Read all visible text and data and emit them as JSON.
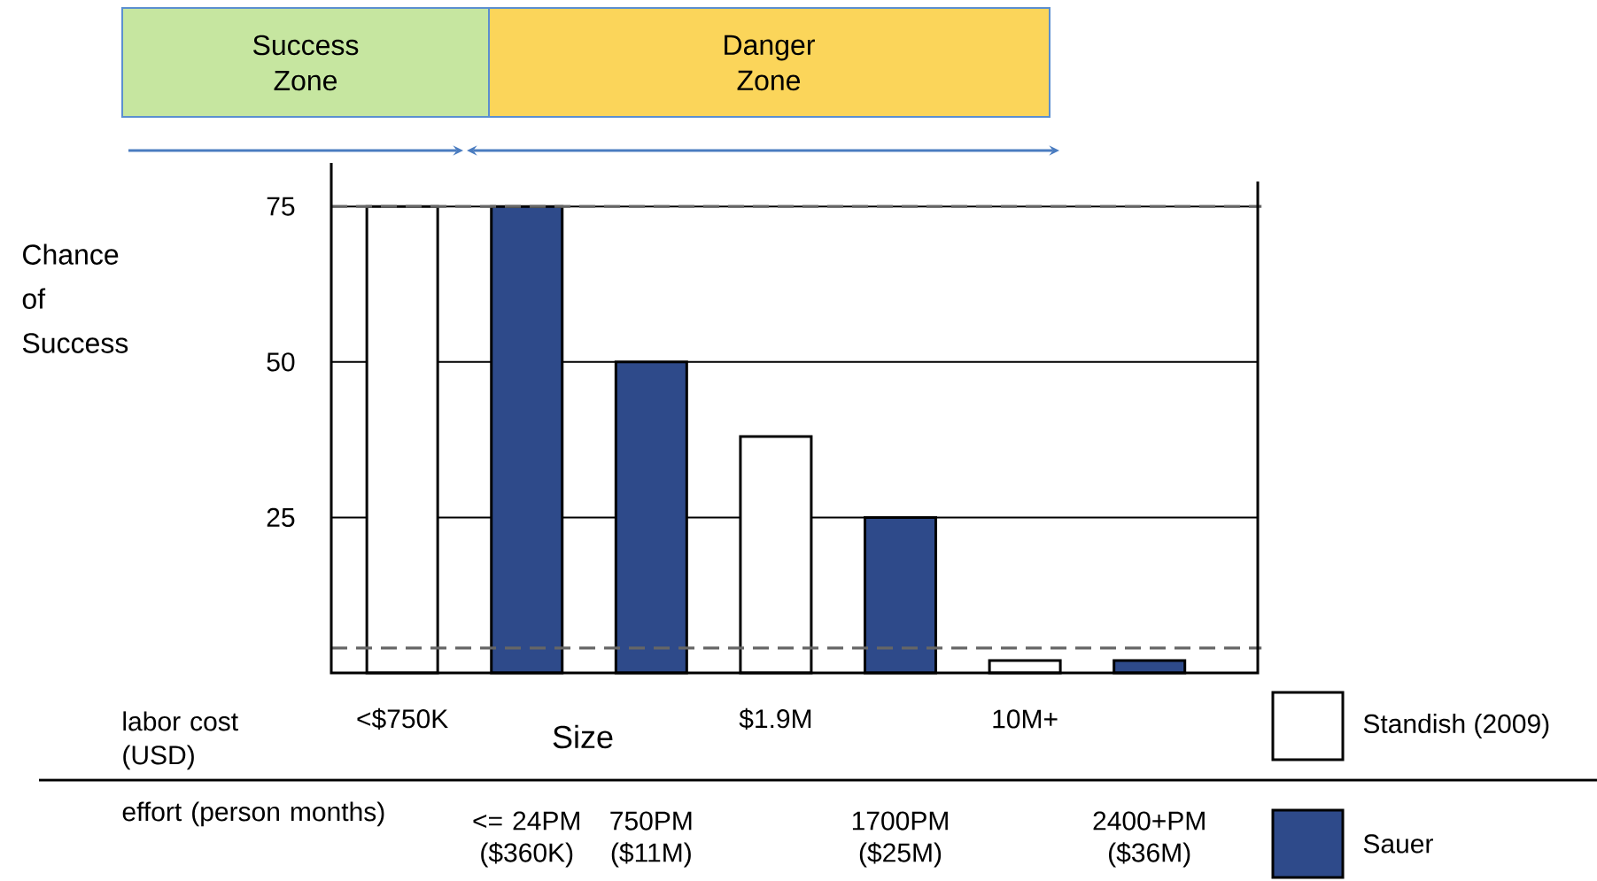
{
  "chart_data": {
    "type": "bar",
    "xlabel": "Size",
    "categories": [
      "<$750K",
      "<= 24PM ($360K)",
      "750PM ($11M)",
      "$1.9M",
      "1700PM ($25M)",
      "10M+",
      "2400+PM ($36M)"
    ],
    "series": [
      {
        "name": "Standish (2009)",
        "color": "#ffffff",
        "values": [
          75,
          null,
          null,
          38,
          null,
          2,
          null
        ]
      },
      {
        "name": "Sauer",
        "color": "#2e4a8a",
        "values": [
          null,
          75,
          50,
          null,
          25,
          null,
          2
        ]
      }
    ],
    "ylim": [
      0,
      82
    ],
    "yticks": [
      25,
      50,
      75
    ],
    "grid": "y",
    "legend": "right",
    "ref_lines": [
      {
        "axis": "y",
        "value": 75,
        "color": "#666666",
        "line_style": "dashed"
      },
      {
        "axis": "y",
        "value": 4,
        "color": "#666666",
        "line_style": "dashed"
      }
    ],
    "annotations": [
      "Success Zone",
      "Danger Zone",
      "Chance of Success",
      "labor cost (USD)",
      "effort (person months)"
    ]
  }
}
